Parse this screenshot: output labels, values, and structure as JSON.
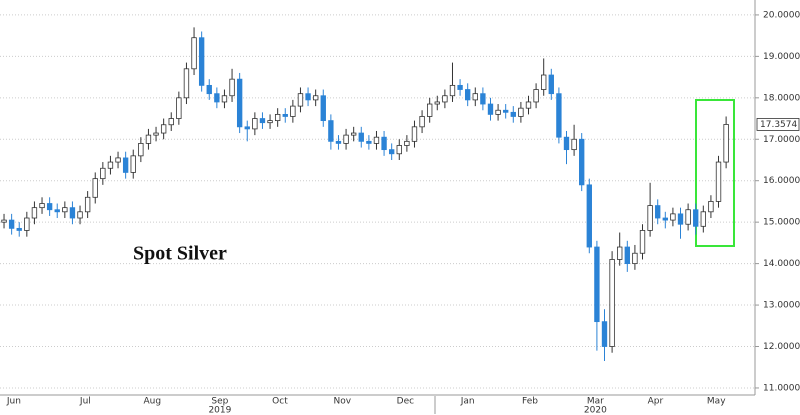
{
  "chart_data": {
    "type": "candlestick",
    "annotation": "Spot Silver",
    "open": [
      15.0,
      15.05,
      14.85,
      14.8,
      15.1,
      15.35,
      15.45,
      15.3,
      15.25,
      15.35,
      15.1,
      15.25,
      15.6,
      16.05,
      16.3,
      16.45,
      16.55,
      16.2,
      16.6,
      16.9,
      17.1,
      17.15,
      17.35,
      17.5,
      18.0,
      18.7,
      19.45,
      18.3,
      18.1,
      17.9,
      18.05,
      18.45,
      17.3,
      17.25,
      17.5,
      17.4,
      17.45,
      17.6,
      17.55,
      17.8,
      18.1,
      17.95,
      18.05,
      17.45,
      16.95,
      16.9,
      17.1,
      17.15,
      16.95,
      16.9,
      17.05,
      16.75,
      16.65,
      16.85,
      16.95,
      17.3,
      17.55,
      17.85,
      17.9,
      18.05,
      18.3,
      18.2,
      17.95,
      18.1,
      17.85,
      17.6,
      17.7,
      17.65,
      17.55,
      17.75,
      17.9,
      18.2,
      18.55,
      18.1,
      17.05,
      16.75,
      17.0,
      15.9,
      14.4,
      12.6,
      12.0,
      14.1,
      14.4,
      14.0,
      14.25,
      14.8,
      15.4,
      15.1,
      15.05,
      15.2,
      14.95,
      15.3,
      14.9,
      15.25,
      15.5,
      16.45
    ],
    "high": [
      15.2,
      15.2,
      15.0,
      15.25,
      15.5,
      15.6,
      15.6,
      15.45,
      15.5,
      15.5,
      15.4,
      15.75,
      16.2,
      16.45,
      16.6,
      16.7,
      16.7,
      16.75,
      17.05,
      17.25,
      17.3,
      17.5,
      17.65,
      18.15,
      18.85,
      19.7,
      19.6,
      18.45,
      18.25,
      18.2,
      18.7,
      18.6,
      17.45,
      17.65,
      17.65,
      17.6,
      17.75,
      17.75,
      17.95,
      18.25,
      18.25,
      18.2,
      18.2,
      17.6,
      17.1,
      17.25,
      17.3,
      17.3,
      17.1,
      17.2,
      17.2,
      16.9,
      17.0,
      17.1,
      17.45,
      17.7,
      18.0,
      18.05,
      18.2,
      18.85,
      18.45,
      18.35,
      18.25,
      18.25,
      18.0,
      17.85,
      17.85,
      17.8,
      17.9,
      18.05,
      18.35,
      18.95,
      18.7,
      18.25,
      17.2,
      17.35,
      17.15,
      16.05,
      14.55,
      12.9,
      14.3,
      14.75,
      14.55,
      14.45,
      14.95,
      15.95,
      15.55,
      15.25,
      15.35,
      15.35,
      15.45,
      15.45,
      15.4,
      15.65,
      16.6,
      17.55
    ],
    "low": [
      14.85,
      14.7,
      14.65,
      14.65,
      14.95,
      15.2,
      15.15,
      15.1,
      15.1,
      14.95,
      14.95,
      15.1,
      15.45,
      15.9,
      16.15,
      16.3,
      16.05,
      16.05,
      16.45,
      16.75,
      16.95,
      17.0,
      17.2,
      17.35,
      17.85,
      18.55,
      18.15,
      17.95,
      17.75,
      17.75,
      17.9,
      17.15,
      16.95,
      17.1,
      17.25,
      17.25,
      17.3,
      17.4,
      17.4,
      17.65,
      17.8,
      17.8,
      17.3,
      16.75,
      16.75,
      16.75,
      16.95,
      16.8,
      16.75,
      16.75,
      16.6,
      16.5,
      16.5,
      16.7,
      16.8,
      17.15,
      17.4,
      17.7,
      17.75,
      17.9,
      18.05,
      17.8,
      17.8,
      17.7,
      17.45,
      17.45,
      17.5,
      17.4,
      17.4,
      17.6,
      17.75,
      18.05,
      17.95,
      16.9,
      16.4,
      16.6,
      15.75,
      14.25,
      11.9,
      11.65,
      11.85,
      13.95,
      13.8,
      13.85,
      14.1,
      14.65,
      14.95,
      14.85,
      14.9,
      14.6,
      14.8,
      14.7,
      14.75,
      15.1,
      15.35,
      16.3
    ],
    "close": [
      15.05,
      14.85,
      14.8,
      15.1,
      15.35,
      15.45,
      15.3,
      15.25,
      15.35,
      15.1,
      15.25,
      15.6,
      16.05,
      16.3,
      16.45,
      16.55,
      16.2,
      16.6,
      16.9,
      17.1,
      17.15,
      17.35,
      17.5,
      18.0,
      18.7,
      19.45,
      18.3,
      18.1,
      17.9,
      18.05,
      18.45,
      17.3,
      17.25,
      17.5,
      17.4,
      17.45,
      17.6,
      17.55,
      17.8,
      18.1,
      17.95,
      18.05,
      17.45,
      16.95,
      16.9,
      17.1,
      17.15,
      16.95,
      16.9,
      17.05,
      16.75,
      16.65,
      16.85,
      16.95,
      17.3,
      17.55,
      17.85,
      17.9,
      18.05,
      18.3,
      18.2,
      17.95,
      18.1,
      17.85,
      17.6,
      17.7,
      17.65,
      17.55,
      17.75,
      17.9,
      18.2,
      18.55,
      18.1,
      17.05,
      16.75,
      17.0,
      15.9,
      14.4,
      12.6,
      12.0,
      14.1,
      14.4,
      14.0,
      14.25,
      14.8,
      15.4,
      15.1,
      15.05,
      15.2,
      14.95,
      15.3,
      14.9,
      15.25,
      15.5,
      16.45,
      17.3574
    ],
    "last_value_label": "17.3574",
    "up_color": "#ffffff",
    "up_edge_color": "#333333",
    "down_color": "#2b83d6",
    "xlim": [
      -0.53,
      98.8
    ],
    "xticks": [
      {
        "value": 1.3,
        "label": "Jun"
      },
      {
        "value": 10.7,
        "label": "Jul"
      },
      {
        "value": 19.5,
        "label": "Aug"
      },
      {
        "value": 28.4,
        "label": "Sep"
      },
      {
        "value": 36.3,
        "label": "Oct"
      },
      {
        "value": 44.5,
        "label": "Nov"
      },
      {
        "value": 52.8,
        "label": "Dec"
      },
      {
        "value": 61,
        "label": "Jan"
      },
      {
        "value": 69.2,
        "label": "Feb"
      },
      {
        "value": 77.8,
        "label": "Mar"
      },
      {
        "value": 85.7,
        "label": "Apr"
      },
      {
        "value": 93.7,
        "label": "May"
      }
    ],
    "year_labels": [
      {
        "value": 28.4,
        "label": "2019"
      },
      {
        "value": 77.8,
        "label": "2020"
      }
    ],
    "ylim": [
      10.83,
      20.36
    ],
    "yticks": [
      {
        "value": 11,
        "label": "11.0000"
      },
      {
        "value": 12,
        "label": "12.0000"
      },
      {
        "value": 13,
        "label": "13.0000"
      },
      {
        "value": 14,
        "label": "14.0000"
      },
      {
        "value": 15,
        "label": "15.0000"
      },
      {
        "value": 16,
        "label": "16.0000"
      },
      {
        "value": 17,
        "label": "17.0000"
      },
      {
        "value": 18,
        "label": "18.0000"
      },
      {
        "value": 19,
        "label": "19.0000"
      },
      {
        "value": 20,
        "label": "20.0000"
      }
    ],
    "grid": true
  }
}
